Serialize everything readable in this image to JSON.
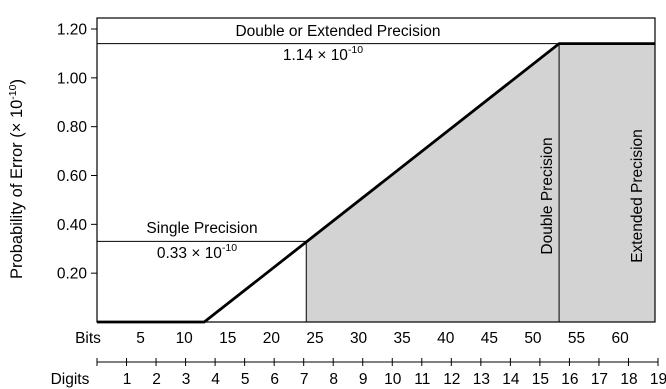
{
  "chart_data": {
    "type": "line",
    "title": "",
    "ylabel": "Probability of Error (× 10",
    "ylabel_exp": "-10",
    "ylabel_close": ")",
    "y_ticks": [
      {
        "value": 0.2,
        "label": "0.20"
      },
      {
        "value": 0.4,
        "label": "0.40"
      },
      {
        "value": 0.6,
        "label": "0.60"
      },
      {
        "value": 0.8,
        "label": "0.80"
      },
      {
        "value": 1.0,
        "label": "1.00"
      },
      {
        "value": 1.2,
        "label": "1.20"
      }
    ],
    "ylim": [
      0,
      1.2
    ],
    "bits_axis": {
      "label": "Bits",
      "range": [
        0,
        64
      ],
      "ticks": [
        5,
        10,
        15,
        20,
        25,
        30,
        35,
        40,
        45,
        50,
        55,
        60
      ]
    },
    "digits_axis": {
      "label": "Digits",
      "range": [
        0,
        19
      ],
      "ticks": [
        1,
        2,
        3,
        4,
        5,
        6,
        7,
        8,
        9,
        10,
        11,
        12,
        13,
        14,
        15,
        16,
        17,
        18,
        19
      ]
    },
    "series": [
      {
        "x_bits": [
          0,
          12.3,
          53,
          64
        ],
        "y": [
          0,
          0,
          1.14,
          1.14
        ]
      }
    ],
    "shaded_from_bits": 24,
    "vertical_lines_bits": [
      24,
      53
    ],
    "annotations": {
      "single": {
        "label": "Single Precision",
        "value_prefix": "0.33 × 10",
        "value_exp": "-10",
        "y": 0.33,
        "at_bits": 24
      },
      "double_ext": {
        "label": "Double or Extended Precision",
        "value_prefix": "1.14 × 10",
        "value_exp": "-10",
        "y": 1.14,
        "at_bits": 53
      },
      "double_region": "Double Precision",
      "extended_region": "Extended Precision"
    },
    "colors": {
      "fill": "#d3d3d3",
      "line": "#000000"
    }
  }
}
